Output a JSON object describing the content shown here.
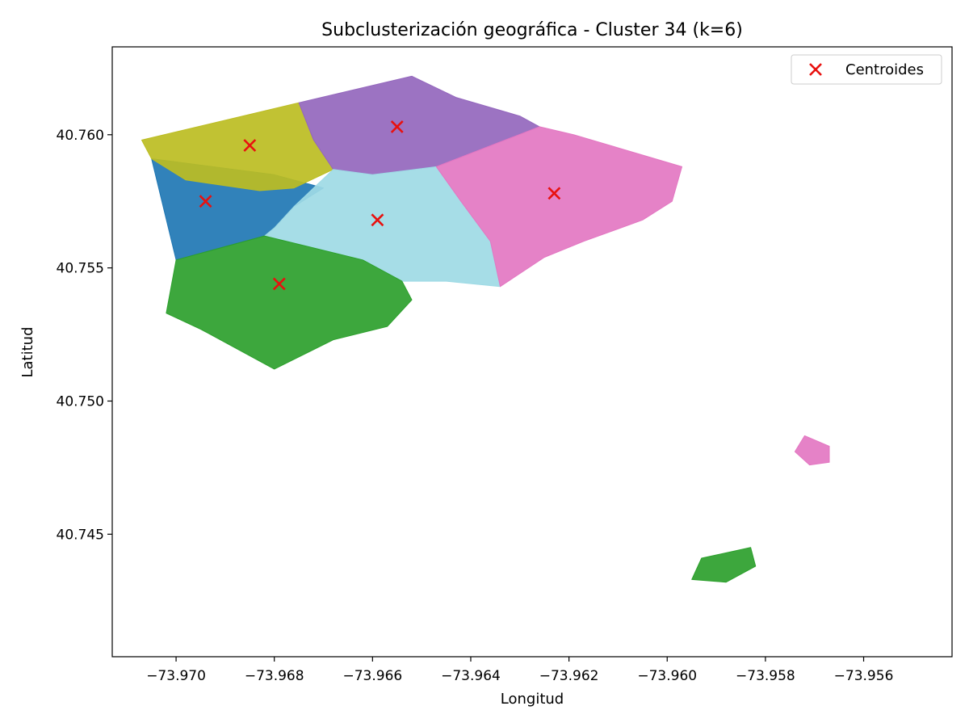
{
  "chart_data": {
    "type": "scatter",
    "title": "Subclusterización geográfica - Cluster 34 (k=6)",
    "xlabel": "Longitud",
    "ylabel": "Latitud",
    "xlim": [
      -73.9713,
      -73.9542
    ],
    "ylim": [
      40.7404,
      40.7633
    ],
    "x_ticks": [
      -73.97,
      -73.968,
      -73.966,
      -73.964,
      -73.962,
      -73.96,
      -73.958,
      -73.956
    ],
    "x_tick_labels": [
      "−73.970",
      "−73.968",
      "−73.966",
      "−73.964",
      "−73.962",
      "−73.960",
      "−73.958",
      "−73.956"
    ],
    "y_ticks": [
      40.745,
      40.75,
      40.755,
      40.76
    ],
    "y_tick_labels": [
      "40.745",
      "40.750",
      "40.755",
      "40.760"
    ],
    "grid": false,
    "legend_position": "top-right",
    "legend": [
      {
        "label": "Centroides",
        "marker": "x",
        "color": "#e8110f"
      }
    ],
    "series": [
      {
        "color": "#1f77b4",
        "regions": [
          [
            [
              -73.9705,
              40.7591
            ],
            [
              -73.968,
              40.7585
            ],
            [
              -73.967,
              40.758
            ],
            [
              -73.9676,
              40.7573
            ],
            [
              -73.968,
              40.7565
            ],
            [
              -73.9682,
              40.7562
            ],
            [
              -73.97,
              40.7553
            ]
          ]
        ]
      },
      {
        "color": "#bcbd22",
        "regions": [
          [
            [
              -73.9707,
              40.7598
            ],
            [
              -73.9675,
              40.7612
            ],
            [
              -73.9672,
              40.7598
            ],
            [
              -73.9668,
              40.7587
            ],
            [
              -73.9676,
              40.758
            ],
            [
              -73.9683,
              40.7579
            ],
            [
              -73.9698,
              40.7583
            ],
            [
              -73.9705,
              40.7591
            ]
          ]
        ]
      },
      {
        "color": "#9467bd",
        "regions": [
          [
            [
              -73.9675,
              40.7612
            ],
            [
              -73.9652,
              40.7622
            ],
            [
              -73.9643,
              40.7614
            ],
            [
              -73.963,
              40.7607
            ],
            [
              -73.9626,
              40.7603
            ],
            [
              -73.9647,
              40.7588
            ],
            [
              -73.966,
              40.7585
            ],
            [
              -73.9668,
              40.7587
            ],
            [
              -73.9672,
              40.7598
            ]
          ]
        ]
      },
      {
        "color": "#9edae5",
        "regions": [
          [
            [
              -73.9668,
              40.7587
            ],
            [
              -73.966,
              40.7585
            ],
            [
              -73.9647,
              40.7588
            ],
            [
              -73.9642,
              40.7575
            ],
            [
              -73.9636,
              40.756
            ],
            [
              -73.9634,
              40.7543
            ],
            [
              -73.9645,
              40.7545
            ],
            [
              -73.9654,
              40.7545
            ],
            [
              -73.9662,
              40.7553
            ],
            [
              -73.9682,
              40.7562
            ],
            [
              -73.968,
              40.7565
            ],
            [
              -73.9676,
              40.7573
            ]
          ]
        ]
      },
      {
        "color": "#e377c2",
        "regions": [
          [
            [
              -73.9647,
              40.7588
            ],
            [
              -73.9626,
              40.7603
            ],
            [
              -73.9619,
              40.76
            ],
            [
              -73.9597,
              40.7588
            ],
            [
              -73.9599,
              40.7575
            ],
            [
              -73.9605,
              40.7568
            ],
            [
              -73.9617,
              40.756
            ],
            [
              -73.9625,
              40.7554
            ],
            [
              -73.9634,
              40.7543
            ],
            [
              -73.9636,
              40.756
            ],
            [
              -73.9642,
              40.7575
            ]
          ],
          [
            [
              -73.9572,
              40.7487
            ],
            [
              -73.9567,
              40.7483
            ],
            [
              -73.9567,
              40.7477
            ],
            [
              -73.9571,
              40.7476
            ],
            [
              -73.9574,
              40.7481
            ]
          ]
        ]
      },
      {
        "color": "#2ca02c",
        "regions": [
          [
            [
              -73.97,
              40.7553
            ],
            [
              -73.9682,
              40.7562
            ],
            [
              -73.9662,
              40.7553
            ],
            [
              -73.9654,
              40.7545
            ],
            [
              -73.9652,
              40.7538
            ],
            [
              -73.9657,
              40.7528
            ],
            [
              -73.9668,
              40.7523
            ],
            [
              -73.968,
              40.7512
            ],
            [
              -73.9695,
              40.7527
            ],
            [
              -73.9702,
              40.7533
            ]
          ],
          [
            [
              -73.9593,
              40.7441
            ],
            [
              -73.9583,
              40.7445
            ],
            [
              -73.9582,
              40.7438
            ],
            [
              -73.9588,
              40.7432
            ],
            [
              -73.9595,
              40.7433
            ]
          ]
        ]
      }
    ],
    "centroids": [
      [
        -73.9694,
        40.7575
      ],
      [
        -73.9685,
        40.7596
      ],
      [
        -73.9655,
        40.7603
      ],
      [
        -73.9659,
        40.7568
      ],
      [
        -73.9623,
        40.7578
      ],
      [
        -73.9679,
        40.7544
      ]
    ]
  }
}
